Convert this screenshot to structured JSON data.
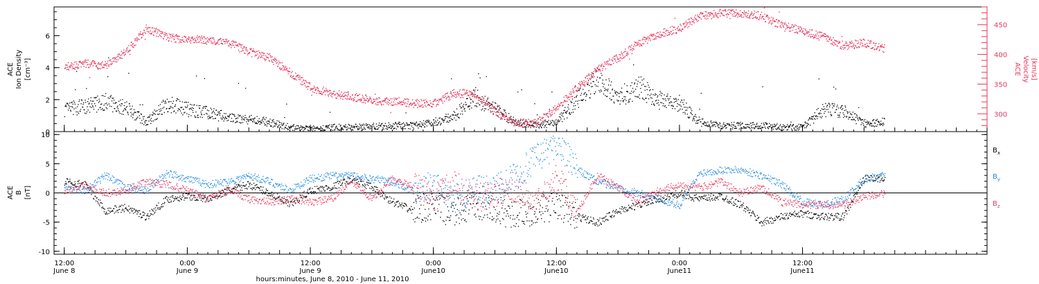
{
  "chart_data": [
    {
      "type": "scatter",
      "panel": "top",
      "left_axis_label": [
        "ACE",
        "Ion Density",
        "[cm⁻³]"
      ],
      "right_axis_label": [
        "ACE",
        "Velocity",
        "[km/s]"
      ],
      "ylim_left": [
        0,
        7.8
      ],
      "yticks_left": [
        0,
        2,
        4,
        6
      ],
      "ylim_right": [
        270,
        480
      ],
      "yticks_right": [
        300,
        350,
        400,
        450
      ],
      "colors": {
        "density": "#000000",
        "velocity": "#e8345a"
      },
      "series": [
        {
          "name": "Ion Density",
          "axis": "left",
          "x_hours": [
            0,
            2,
            4,
            6,
            8,
            10,
            12,
            14,
            16,
            18,
            20,
            22,
            24,
            26,
            28,
            30,
            32,
            34,
            36,
            38,
            40,
            42,
            44,
            46,
            48,
            50,
            52,
            54,
            56,
            58,
            60,
            62,
            64,
            66,
            68,
            70,
            72,
            74,
            76,
            78,
            80
          ],
          "values": [
            1.4,
            1.6,
            1.9,
            1.5,
            0.6,
            1.8,
            1.4,
            1.2,
            0.9,
            0.8,
            0.6,
            0.3,
            0.2,
            0.3,
            0.3,
            0.35,
            0.4,
            0.4,
            0.6,
            1.0,
            2.2,
            1.4,
            0.6,
            0.4,
            0.6,
            2.0,
            3.2,
            2.2,
            2.8,
            2.0,
            1.8,
            0.6,
            0.4,
            0.4,
            0.4,
            0.3,
            0.3,
            1.4,
            1.3,
            0.5,
            0.7
          ]
        },
        {
          "name": "Velocity",
          "axis": "right",
          "x_hours": [
            0,
            2,
            4,
            6,
            8,
            10,
            12,
            14,
            16,
            18,
            20,
            22,
            24,
            26,
            28,
            30,
            32,
            34,
            36,
            38,
            40,
            42,
            44,
            46,
            48,
            50,
            52,
            54,
            56,
            58,
            60,
            62,
            64,
            66,
            68,
            70,
            72,
            74,
            76,
            78,
            80
          ],
          "values": [
            380,
            385,
            382,
            405,
            445,
            430,
            425,
            425,
            420,
            405,
            395,
            370,
            345,
            335,
            330,
            322,
            322,
            318,
            318,
            335,
            335,
            305,
            285,
            285,
            310,
            345,
            375,
            395,
            420,
            435,
            445,
            465,
            470,
            470,
            465,
            450,
            440,
            430,
            415,
            420,
            410
          ]
        }
      ]
    },
    {
      "type": "scatter",
      "panel": "bottom",
      "left_axis_label": [
        "ACE",
        "B",
        "[nT]"
      ],
      "ylim": [
        -10.5,
        10.5
      ],
      "yticks": [
        -10,
        -5,
        0,
        5,
        10
      ],
      "zero_line": true,
      "series": [
        {
          "name": "Bx",
          "color": "#000000",
          "x_hours": [
            0,
            2,
            4,
            6,
            8,
            10,
            12,
            14,
            16,
            18,
            20,
            22,
            24,
            26,
            28,
            30,
            32,
            34,
            36,
            38,
            40,
            42,
            44,
            46,
            48,
            50,
            52,
            54,
            56,
            58,
            60,
            62,
            64,
            66,
            68,
            70,
            72,
            74,
            76,
            78,
            80
          ],
          "values": [
            2,
            1.5,
            -3,
            -2.5,
            -4,
            -1,
            -0.5,
            -1,
            0.5,
            1.5,
            0,
            -2,
            0.5,
            1,
            2.5,
            1,
            -1.5,
            -3,
            -2,
            -3.5,
            -2,
            -3,
            -3.5,
            -3,
            -2,
            -4,
            -5,
            -3,
            -2,
            -1,
            0,
            -1,
            -0.5,
            -2,
            -5,
            -4,
            -3.5,
            -4,
            -4,
            2.5,
            2.5
          ]
        },
        {
          "name": "By",
          "color": "#1e88e5",
          "x_hours": [
            0,
            2,
            4,
            6,
            8,
            10,
            12,
            14,
            16,
            18,
            20,
            22,
            24,
            26,
            28,
            30,
            32,
            34,
            36,
            38,
            40,
            42,
            44,
            46,
            48,
            50,
            52,
            54,
            56,
            58,
            60,
            62,
            64,
            66,
            68,
            70,
            72,
            74,
            76,
            78,
            80
          ],
          "values": [
            1,
            0.5,
            3,
            1,
            0.5,
            3.5,
            2.5,
            1.5,
            2,
            3,
            2,
            0.5,
            2.5,
            3,
            3,
            2.5,
            2,
            0.5,
            1.5,
            -1,
            0.5,
            1,
            3,
            6,
            8.5,
            4,
            2,
            1,
            0,
            -1,
            -2,
            3.5,
            4,
            4,
            3,
            1.5,
            -1.5,
            -2,
            -1,
            2.5,
            3
          ]
        },
        {
          "name": "Bz",
          "color": "#e8345a",
          "x_hours": [
            0,
            2,
            4,
            6,
            8,
            10,
            12,
            14,
            16,
            18,
            20,
            22,
            24,
            26,
            28,
            30,
            32,
            34,
            36,
            38,
            40,
            42,
            44,
            46,
            48,
            50,
            52,
            54,
            56,
            58,
            60,
            62,
            64,
            66,
            68,
            70,
            72,
            74,
            76,
            78,
            80
          ],
          "values": [
            0.5,
            1.5,
            0,
            0.5,
            2,
            1.5,
            0.5,
            -1,
            0.5,
            -1,
            -1.5,
            -1,
            -1.5,
            -1,
            2,
            -1,
            2.5,
            1,
            -0.5,
            1.5,
            -1,
            0,
            1,
            -2,
            3,
            -3,
            3,
            1,
            -1.5,
            0.5,
            1.5,
            1,
            2,
            0,
            1,
            -1.5,
            -2,
            -2,
            -2,
            -0.5,
            0
          ]
        }
      ],
      "legend": [
        {
          "main": "B",
          "sub": "x",
          "color": "#000000"
        },
        {
          "main": "B",
          "sub": "y",
          "color": "#1e88e5"
        },
        {
          "main": "B",
          "sub": "z",
          "color": "#e8345a"
        }
      ]
    }
  ],
  "x_axis": {
    "range_hours": [
      -1,
      90
    ],
    "ticks": [
      {
        "hours": 0,
        "time": "12:00",
        "date": "June 8"
      },
      {
        "hours": 12,
        "time": "0:00",
        "date": "June 9"
      },
      {
        "hours": 24,
        "time": "12:00",
        "date": "June 9"
      },
      {
        "hours": 36,
        "time": "0:00",
        "date": "June10"
      },
      {
        "hours": 48,
        "time": "12:00",
        "date": "June10"
      },
      {
        "hours": 60,
        "time": "0:00",
        "date": "June11"
      },
      {
        "hours": 72,
        "time": "12:00",
        "date": "June11"
      }
    ],
    "title": "hours:minutes, June  8, 2010 - June 11, 2010"
  }
}
